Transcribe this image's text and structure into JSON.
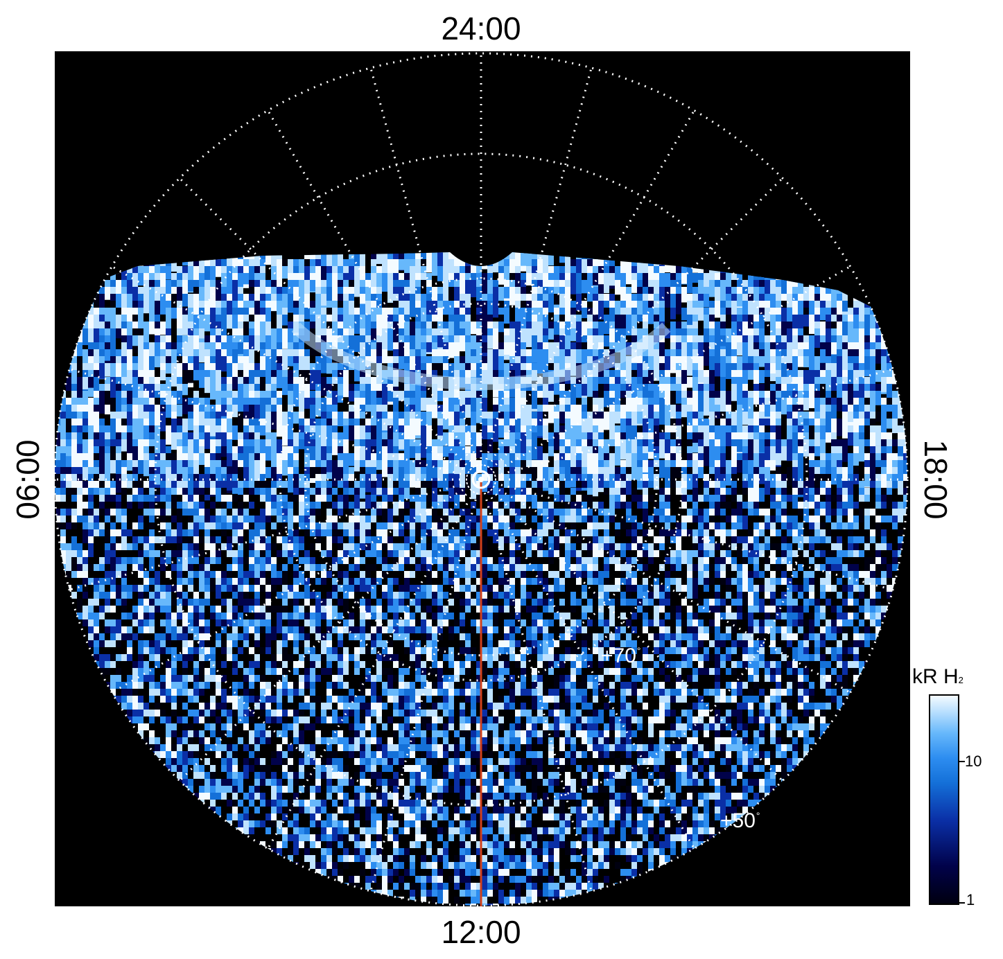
{
  "labels": {
    "top": "24:00",
    "bottom": "12:00",
    "left": "06:00",
    "right": "18:00"
  },
  "latitude_labels": {
    "inner": "+70",
    "outer": "+50",
    "degree_mark": "°"
  },
  "colorbar": {
    "title_main": "kR H",
    "title_sub": "2",
    "ticks": [
      "10",
      "1"
    ],
    "colors": [
      "#000010",
      "#01024a",
      "#0a2fa6",
      "#1470d8",
      "#2d8df0",
      "#67b8fb",
      "#bfe2fe",
      "#f4fbff"
    ]
  },
  "colors": {
    "background": "#000000",
    "grid": "#ffffff",
    "meridian_line": "#d2401a"
  }
}
